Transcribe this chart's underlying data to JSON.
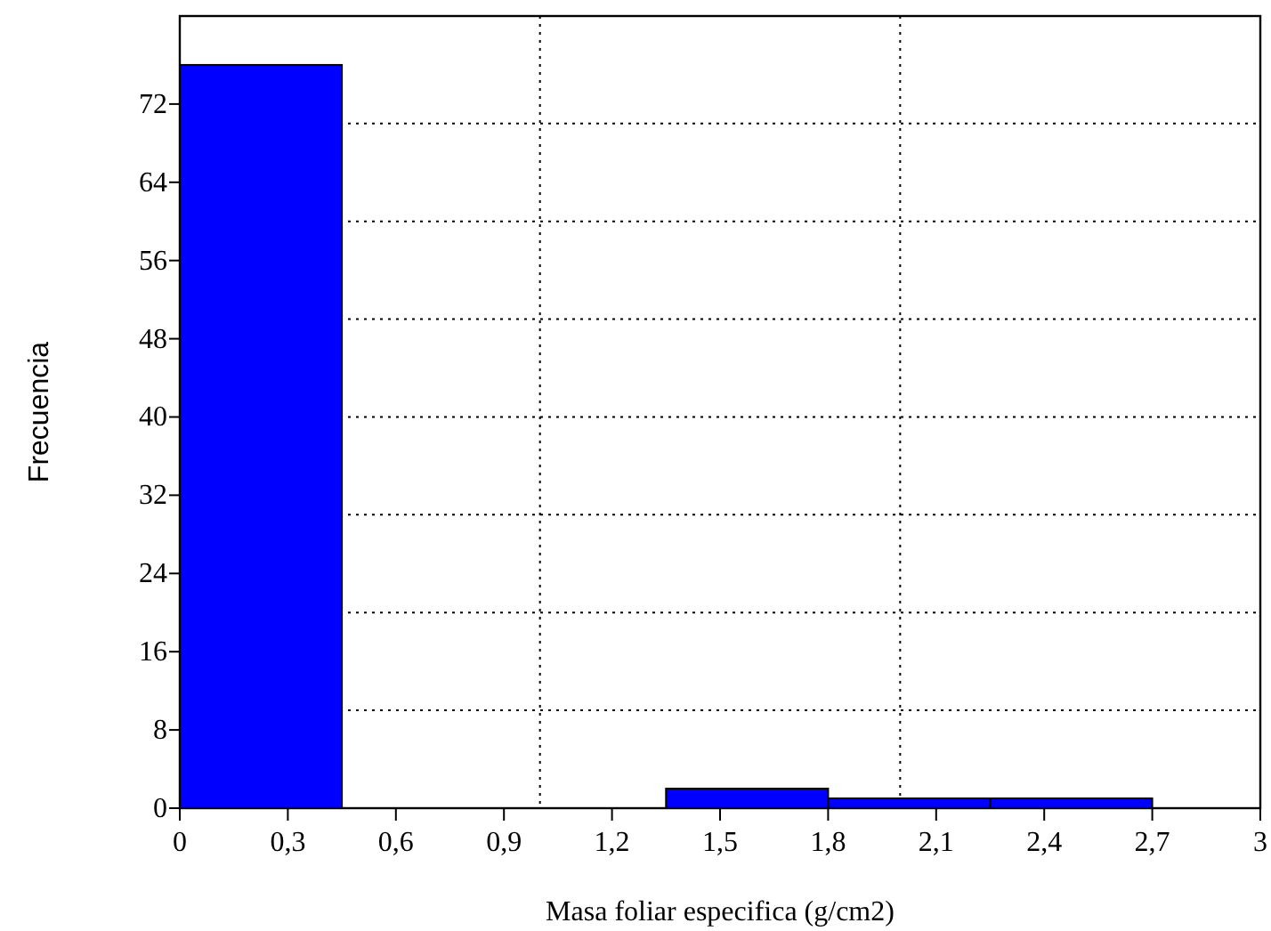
{
  "chart_data": {
    "type": "histogram",
    "xlabel": "Masa foliar especifica (g/cm2)",
    "ylabel": "Frecuencia",
    "bins": [
      0,
      0.45,
      0.9,
      1.35,
      1.8,
      2.25,
      2.7
    ],
    "values": [
      76,
      0,
      0,
      2,
      1,
      1
    ],
    "color": "#0000ff",
    "xlim": [
      0,
      3
    ],
    "xticks": [
      0,
      {
        "value": 0.3,
        "label": "0,3"
      },
      {
        "value": 0.6,
        "label": "0,6"
      },
      {
        "value": 0.9,
        "label": "0,9"
      },
      {
        "value": 1.2,
        "label": "1,2"
      },
      {
        "value": 1.5,
        "label": "1,5"
      },
      {
        "value": 1.8,
        "label": "1,8"
      },
      {
        "value": 2.1,
        "label": "2,1"
      },
      {
        "value": 2.4,
        "label": "2,4"
      },
      {
        "value": 2.7,
        "label": "2,7"
      },
      3
    ],
    "ylim": [
      0,
      81
    ],
    "yticks": [
      0,
      8,
      16,
      24,
      32,
      40,
      48,
      56,
      64,
      72
    ],
    "ref_lines": [
      {
        "axis": "x",
        "value": 1,
        "color": "#000000",
        "line_style": "dotted"
      },
      {
        "axis": "x",
        "value": 2,
        "color": "#000000",
        "line_style": "dotted"
      },
      {
        "axis": "y",
        "value": 10,
        "color": "#000000",
        "line_style": "dotted"
      },
      {
        "axis": "y",
        "value": 20,
        "color": "#000000",
        "line_style": "dotted"
      },
      {
        "axis": "y",
        "value": 30,
        "color": "#000000",
        "line_style": "dotted"
      },
      {
        "axis": "y",
        "value": 40,
        "color": "#000000",
        "line_style": "dotted"
      },
      {
        "axis": "y",
        "value": 50,
        "color": "#000000",
        "line_style": "dotted"
      },
      {
        "axis": "y",
        "value": 60,
        "color": "#000000",
        "line_style": "dotted"
      },
      {
        "axis": "y",
        "value": 70,
        "color": "#000000",
        "line_style": "dotted"
      }
    ]
  }
}
